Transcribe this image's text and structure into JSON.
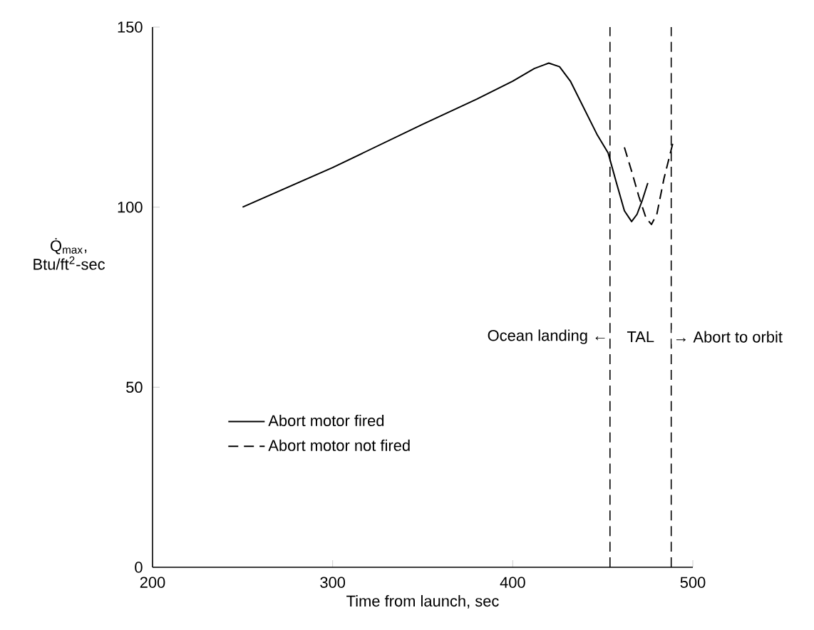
{
  "chart_data": {
    "type": "line",
    "xlabel": "Time from launch, sec",
    "ylabel": "Q̇$_{max}$, Btu/ft$^{2}$-sec",
    "xlim": [
      200,
      500
    ],
    "ylim": [
      0,
      150
    ],
    "xticks": [
      200,
      300,
      400,
      500
    ],
    "yticks": [
      0,
      50,
      100,
      150
    ],
    "series": [
      {
        "name": "Abort motor fired",
        "color": "#000000",
        "line_style": "solid",
        "x": [
          250,
          300,
          350,
          380,
          400,
          412,
          420,
          426,
          432,
          440,
          447,
          453,
          458,
          462,
          466,
          469,
          472,
          475
        ],
        "values": [
          100,
          111,
          123,
          130,
          135,
          138.5,
          140,
          139,
          135,
          127,
          120,
          115,
          106,
          99,
          96,
          98,
          102,
          106.7
        ]
      },
      {
        "name": "Abort motor not fired",
        "color": "#000000",
        "line_style": "dashed",
        "x": [
          462,
          466,
          470,
          474,
          477,
          480,
          484,
          489
        ],
        "values": [
          116.6,
          110,
          103,
          97,
          95.2,
          98,
          108,
          118
        ]
      }
    ],
    "ref_lines": [
      {
        "axis": "x",
        "value": 454,
        "line_style": "dashed",
        "color": "#000000"
      },
      {
        "axis": "x",
        "value": 488,
        "line_style": "dashed",
        "color": "#000000"
      }
    ],
    "annotations": [
      {
        "text": "Ocean landing ←",
        "x": 454,
        "y": 64
      },
      {
        "text": "TAL",
        "x": 471,
        "y": 64
      },
      {
        "text": "→ Abort to orbit",
        "x": 488,
        "y": 64
      }
    ],
    "grid": false,
    "legend": "bottom left",
    "marker": "none"
  }
}
